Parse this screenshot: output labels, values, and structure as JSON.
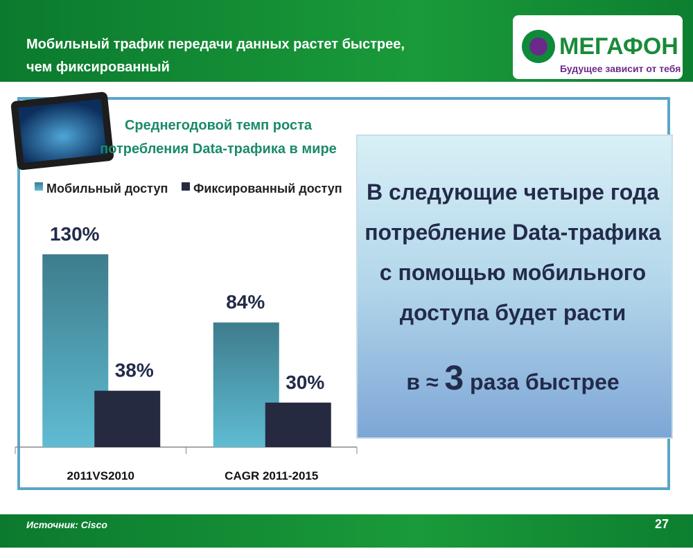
{
  "header": {
    "title_lines": [
      "Мобильный трафик передачи данных растет быстрее,",
      "чем фиксированный"
    ],
    "logo": "МЕГАФОН",
    "tagline": "Будущее зависит от тебя"
  },
  "chart_data": {
    "type": "bar",
    "title_lines": [
      "Среднегодовой темп роста",
      "потребления Data-трафика в мире"
    ],
    "categories": [
      "2011VS2010",
      "CAGR 2011-2015"
    ],
    "series": [
      {
        "name": "Мобильный доступ",
        "color": "#5fbcd3",
        "values": [
          130,
          84
        ],
        "value_labels": [
          "130%",
          "84%"
        ]
      },
      {
        "name": "Фиксированный доступ",
        "color": "#262a40",
        "values": [
          38,
          30
        ],
        "value_labels": [
          "38%",
          "30%"
        ]
      }
    ]
  },
  "callout": {
    "lines": [
      "В следующие четыре года",
      "потребление Data-трафика",
      "с помощью мобильного",
      "доступа будет расти"
    ],
    "prefix": "в ≈",
    "emphasis": "3",
    "suffix": "раза быстрее"
  },
  "footer": {
    "source": "Источник: Cisco",
    "page": "27"
  }
}
